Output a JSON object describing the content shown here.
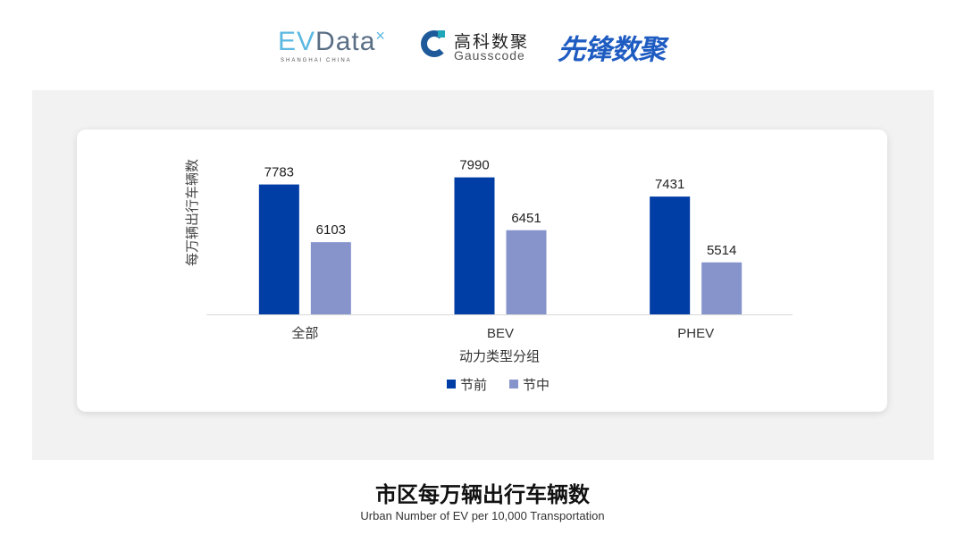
{
  "logos": {
    "evdata": "EVData",
    "evdata_sub": "SHANGHAI CHINA",
    "gausscode_cn": "高科数聚",
    "gausscode_en": "Gausscode",
    "xianfeng": "先锋数聚"
  },
  "title": "市区每万辆出行车辆数",
  "subtitle": "Urban Number of EV per 10,000 Transportation",
  "chart_data": {
    "type": "bar",
    "categories": [
      "全部",
      "BEV",
      "PHEV"
    ],
    "series": [
      {
        "name": "节前",
        "values": [
          7783,
          7990,
          7431
        ],
        "color": "#003da5"
      },
      {
        "name": "节中",
        "values": [
          6103,
          6451,
          5514
        ],
        "color": "#8794cc"
      }
    ],
    "xlabel": "动力类型分组",
    "ylabel": "每万辆出行车辆数",
    "ylim": [
      4000,
      8500
    ],
    "grid": false,
    "legend": "bottom",
    "data_labels": true
  }
}
